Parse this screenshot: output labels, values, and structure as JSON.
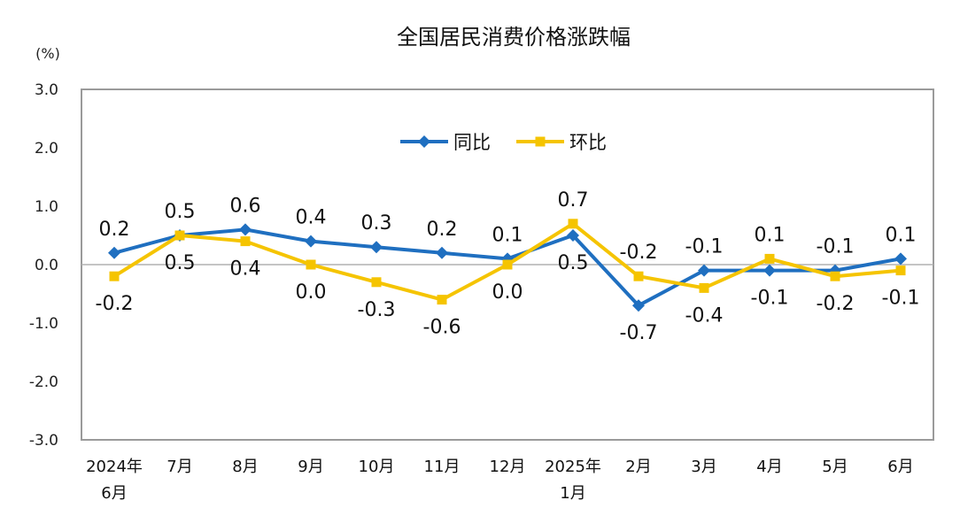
{
  "chart_data": {
    "type": "line",
    "title": "全国居民消费价格涨跌幅",
    "unit": "(%)",
    "ylim": [
      -3.0,
      3.0
    ],
    "yticks": [
      "3.0",
      "2.0",
      "1.0",
      "0.0",
      "-1.0",
      "-2.0",
      "-3.0"
    ],
    "categories": [
      [
        "2024年",
        "6月"
      ],
      [
        "7月"
      ],
      [
        "8月"
      ],
      [
        "9月"
      ],
      [
        "10月"
      ],
      [
        "11月"
      ],
      [
        "12月"
      ],
      [
        "2025年",
        "1月"
      ],
      [
        "2月"
      ],
      [
        "3月"
      ],
      [
        "4月"
      ],
      [
        "5月"
      ],
      [
        "6月"
      ]
    ],
    "grid": false,
    "legend": "top-center",
    "series": [
      {
        "name": "同比",
        "color": "#1f6fc0",
        "marker": "diamond",
        "values": [
          0.2,
          0.5,
          0.6,
          0.4,
          0.3,
          0.2,
          0.1,
          0.5,
          -0.7,
          -0.1,
          -0.1,
          -0.1,
          0.1
        ],
        "labels": [
          "0.2",
          "0.5",
          "0.6",
          "0.4",
          "0.3",
          "0.2",
          "0.1",
          "0.5",
          "-0.7",
          "-0.1",
          "-0.1",
          "-0.1",
          "0.1"
        ]
      },
      {
        "name": "环比",
        "color": "#f5c400",
        "marker": "square",
        "values": [
          -0.2,
          0.5,
          0.4,
          0.0,
          -0.3,
          -0.6,
          0.0,
          0.7,
          -0.2,
          -0.4,
          0.1,
          -0.2,
          -0.1
        ],
        "labels": [
          "-0.2",
          "0.5",
          "0.4",
          "0.0",
          "-0.3",
          "-0.6",
          "0.0",
          "0.7",
          "-0.2",
          "-0.4",
          "0.1",
          "-0.2",
          "-0.1"
        ]
      }
    ]
  }
}
